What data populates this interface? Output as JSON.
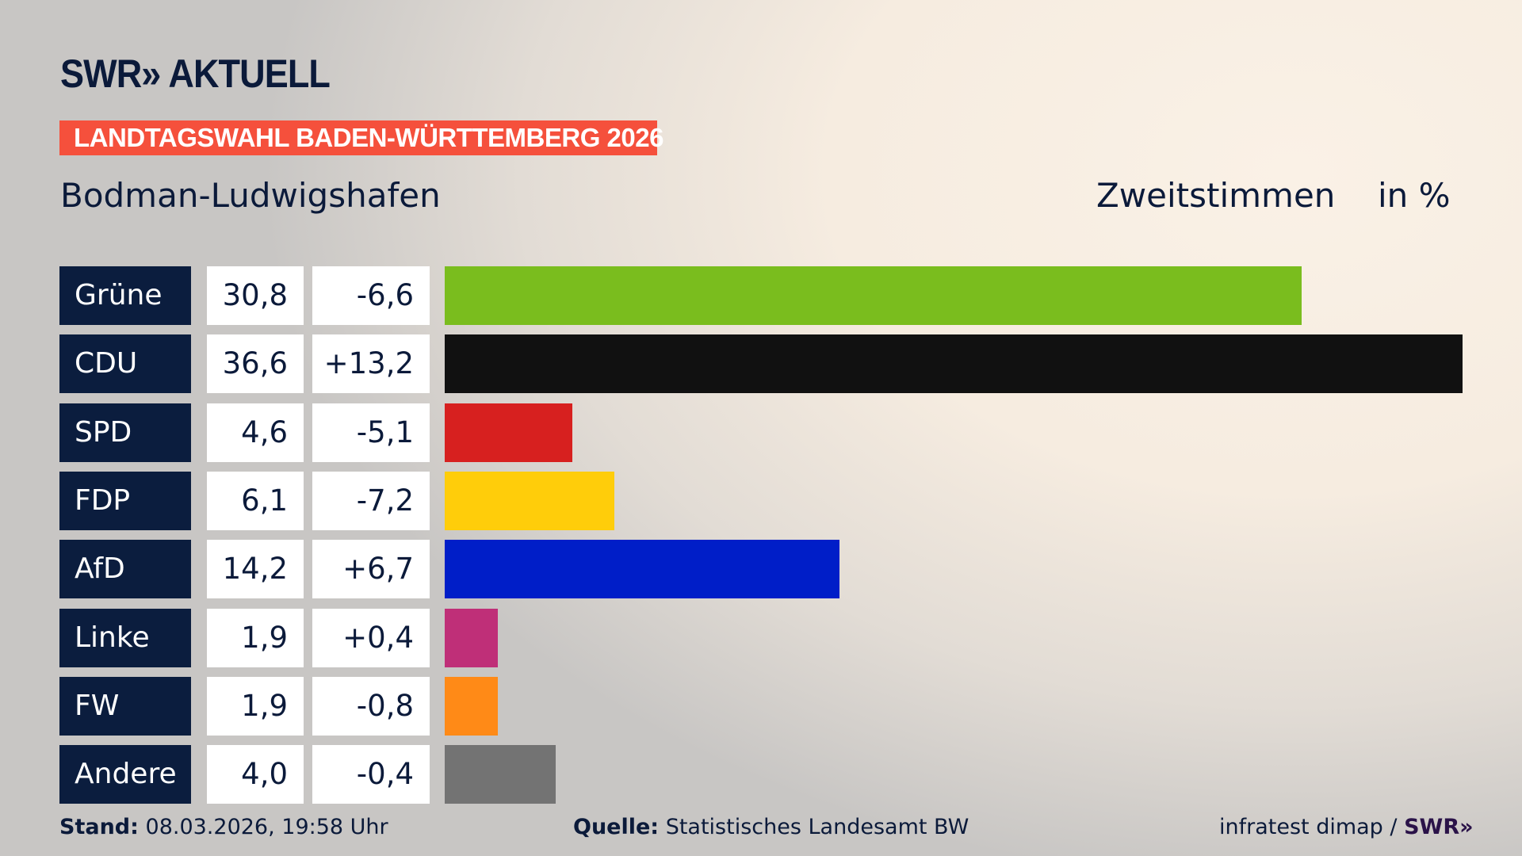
{
  "header": {
    "logo": "SWR» AKTUELL",
    "banner": "LANDTAGSWAHL BADEN-WÜRTTEMBERG 2026",
    "location": "Bodman-Ludwigshafen",
    "vote_type": "Zweitstimmen",
    "unit": "in %"
  },
  "chart_data": {
    "type": "bar",
    "orientation": "horizontal",
    "title": "Bodman-Ludwigshafen – Zweitstimmen in %",
    "categories": [
      "Grüne",
      "CDU",
      "SPD",
      "FDP",
      "AfD",
      "Linke",
      "FW",
      "Andere"
    ],
    "values": [
      30.8,
      36.6,
      4.6,
      6.1,
      14.2,
      1.9,
      1.9,
      4.0
    ],
    "value_labels": [
      "30,8",
      "36,6",
      "4,6",
      "6,1",
      "14,2",
      "1,9",
      "1,9",
      "4,0"
    ],
    "diff_labels": [
      "-6,6",
      "+13,2",
      "-5,1",
      "-7,2",
      "+6,7",
      "+0,4",
      "-0,8",
      "-0,4"
    ],
    "colors": [
      "#7abd1e",
      "#111111",
      "#d7201f",
      "#ffcd0a",
      "#001ec8",
      "#bf2f78",
      "#ff8a17",
      "#737373"
    ],
    "xlim": [
      0,
      36.6
    ]
  },
  "footer": {
    "stand_label": "Stand:",
    "stand_value": "08.03.2026, 19:58 Uhr",
    "source_label": "Quelle:",
    "source_value": "Statistisches Landesamt BW",
    "credit": "infratest dimap /",
    "credit_logo": "SWR»"
  }
}
